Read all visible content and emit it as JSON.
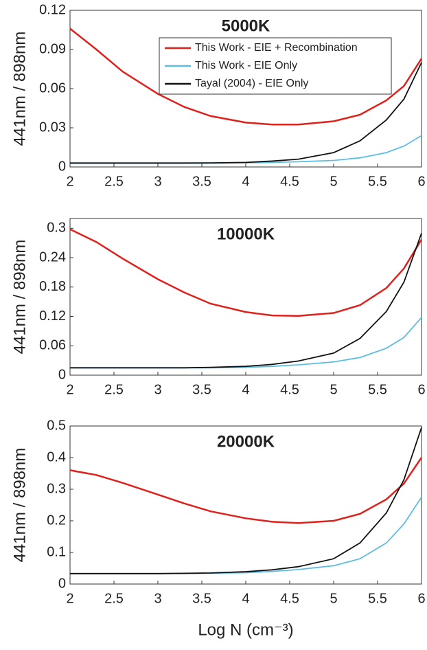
{
  "chart_data": [
    {
      "type": "line",
      "title": "5000K",
      "ylabel": "441nm / 898nm",
      "legend": "upper right",
      "x": [
        2,
        2.3,
        2.6,
        3,
        3.3,
        3.6,
        4,
        4.3,
        4.6,
        5,
        5.3,
        5.6,
        5.8,
        6
      ],
      "xlim": [
        2,
        6
      ],
      "xticks": [
        2,
        2.5,
        3,
        3.5,
        4,
        4.5,
        5,
        5.5,
        6
      ],
      "ylim": [
        0,
        0.12
      ],
      "yticks": [
        0,
        0.03,
        0.06,
        0.09,
        0.12
      ],
      "series": [
        {
          "name": "This Work - EIE + Recombination",
          "color": "#e0201b",
          "values": [
            0.106,
            0.09,
            0.073,
            0.056,
            0.046,
            0.039,
            0.034,
            0.0325,
            0.0325,
            0.035,
            0.04,
            0.051,
            0.062,
            0.083
          ]
        },
        {
          "name": "This Work - EIE Only",
          "color": "#5bbde4",
          "values": [
            0.003,
            0.003,
            0.003,
            0.003,
            0.003,
            0.003,
            0.0032,
            0.0035,
            0.004,
            0.005,
            0.007,
            0.011,
            0.016,
            0.024
          ]
        },
        {
          "name": "Tayal (2004) - EIE Only",
          "color": "#111111",
          "values": [
            0.003,
            0.003,
            0.003,
            0.003,
            0.003,
            0.0031,
            0.0035,
            0.0045,
            0.006,
            0.011,
            0.02,
            0.036,
            0.052,
            0.08
          ]
        }
      ]
    },
    {
      "type": "line",
      "title": "10000K",
      "ylabel": "441nm / 898nm",
      "x": [
        2,
        2.3,
        2.6,
        3,
        3.3,
        3.6,
        4,
        4.3,
        4.6,
        5,
        5.3,
        5.6,
        5.8,
        6
      ],
      "xlim": [
        2,
        6
      ],
      "xticks": [
        2,
        2.5,
        3,
        3.5,
        4,
        4.5,
        5,
        5.5,
        6
      ],
      "ylim": [
        0,
        0.32
      ],
      "yticks": [
        0,
        0.06,
        0.12,
        0.18,
        0.24,
        0.3
      ],
      "series": [
        {
          "color": "#e0201b",
          "values": [
            0.298,
            0.272,
            0.238,
            0.196,
            0.169,
            0.146,
            0.129,
            0.122,
            0.121,
            0.127,
            0.143,
            0.178,
            0.218,
            0.277
          ]
        },
        {
          "color": "#5bbde4",
          "values": [
            0.015,
            0.015,
            0.015,
            0.015,
            0.015,
            0.015,
            0.016,
            0.018,
            0.021,
            0.027,
            0.036,
            0.055,
            0.077,
            0.118
          ]
        },
        {
          "color": "#111111",
          "values": [
            0.015,
            0.015,
            0.015,
            0.015,
            0.015,
            0.016,
            0.018,
            0.022,
            0.029,
            0.045,
            0.075,
            0.13,
            0.19,
            0.29
          ]
        }
      ]
    },
    {
      "type": "line",
      "title": "20000K",
      "ylabel": "441nm / 898nm",
      "xlabel": "Log N (cm⁻³)",
      "x": [
        2,
        2.3,
        2.6,
        3,
        3.3,
        3.6,
        4,
        4.3,
        4.6,
        5,
        5.3,
        5.6,
        5.8,
        6
      ],
      "xlim": [
        2,
        6
      ],
      "xticks": [
        2,
        2.5,
        3,
        3.5,
        4,
        4.5,
        5,
        5.5,
        6
      ],
      "ylim": [
        0,
        0.5
      ],
      "yticks": [
        0,
        0.1,
        0.2,
        0.3,
        0.4,
        0.5
      ],
      "series": [
        {
          "color": "#e0201b",
          "values": [
            0.36,
            0.345,
            0.32,
            0.283,
            0.255,
            0.23,
            0.208,
            0.197,
            0.193,
            0.2,
            0.222,
            0.268,
            0.318,
            0.4
          ]
        },
        {
          "color": "#5bbde4",
          "values": [
            0.033,
            0.033,
            0.033,
            0.033,
            0.033,
            0.034,
            0.036,
            0.04,
            0.046,
            0.058,
            0.08,
            0.13,
            0.19,
            0.275
          ]
        },
        {
          "color": "#111111",
          "values": [
            0.033,
            0.033,
            0.033,
            0.033,
            0.034,
            0.035,
            0.039,
            0.045,
            0.055,
            0.08,
            0.13,
            0.225,
            0.33,
            0.495
          ]
        }
      ]
    }
  ]
}
